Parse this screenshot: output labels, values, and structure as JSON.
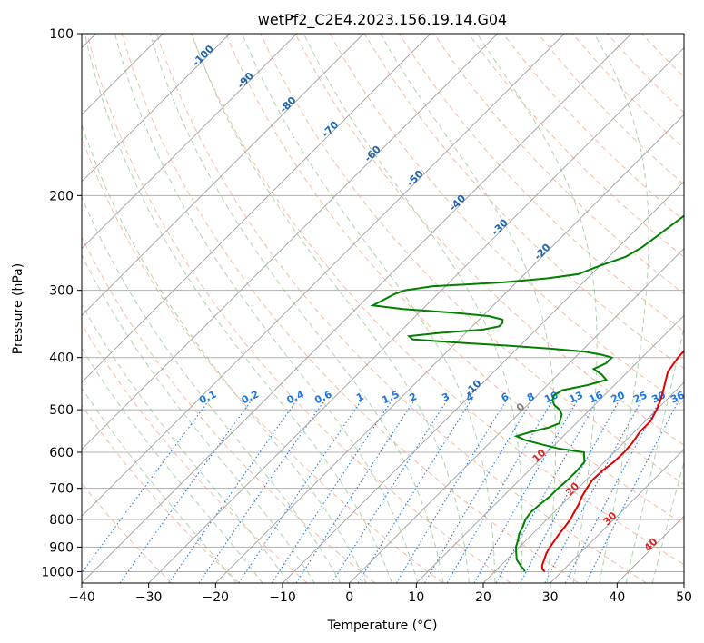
{
  "chart_data": {
    "type": "line",
    "title": "wetPf2_C2E4.2023.156.19.14.G04",
    "xlabel": "Temperature (°C)",
    "ylabel": "Pressure (hPa)",
    "xlim": [
      -40,
      50
    ],
    "ylim": [
      1050,
      100
    ],
    "y_scale": "log",
    "grid": true,
    "x_ticks": [
      "−40",
      "−30",
      "−20",
      "−10",
      "0",
      "10",
      "20",
      "30",
      "40",
      "50"
    ],
    "y_ticks": [
      "100",
      "200",
      "300",
      "400",
      "500",
      "600",
      "700",
      "800",
      "900",
      "1000"
    ],
    "y_tick_values": [
      100,
      200,
      300,
      400,
      500,
      600,
      700,
      800,
      900,
      1000
    ],
    "x_tick_values": [
      -40,
      -30,
      -20,
      -10,
      0,
      10,
      20,
      30,
      40,
      50
    ],
    "colors": {
      "temperature": "#e00000",
      "dewpoint": "#008000",
      "isotherm": "#a0a0a0",
      "dry_adiabat": "#f4a582",
      "moist_adiabat": "#92c592",
      "mixing_ratio": "#1f77e0",
      "ice_label": "#2166ac",
      "warm_label": "#d62728"
    },
    "series": [
      {
        "pressure": [
          1000,
          990,
          975,
          950,
          925,
          900,
          875,
          850,
          825,
          800,
          775,
          750,
          725,
          700,
          675,
          650,
          625,
          600,
          575,
          550,
          525,
          500,
          475,
          450,
          425,
          400,
          375,
          350,
          325,
          300,
          275,
          250,
          225,
          200,
          175,
          150,
          140,
          130,
          120,
          110,
          100
        ],
        "values": [
          27.5,
          26.8,
          26.2,
          25.6,
          25.0,
          24.6,
          24.3,
          24.0,
          23.8,
          23.5,
          23.0,
          22.5,
          21.8,
          21.3,
          20.9,
          21.0,
          21.4,
          21.5,
          21.3,
          20.8,
          20.8,
          20.0,
          18.9,
          17.5,
          16.0,
          15.4,
          15.2,
          14.9,
          14.2,
          13.2,
          11.5,
          9.5,
          7.5,
          5.5,
          3.5,
          1.2,
          0.6,
          1.2,
          2.5,
          3.0,
          3.5
        ]
      },
      {
        "pressure": [
          1000,
          990,
          975,
          950,
          925,
          900,
          875,
          850,
          825,
          800,
          775,
          750,
          725,
          700,
          675,
          650,
          625,
          600,
          590,
          580,
          570,
          560,
          550,
          540,
          530,
          520,
          510,
          500,
          490,
          480,
          470,
          460,
          450,
          440,
          430,
          420,
          410,
          400,
          395,
          390,
          385,
          380,
          375,
          370,
          365,
          360,
          355,
          350,
          345,
          340,
          335,
          330,
          325,
          320,
          315,
          310,
          305,
          300,
          295,
          290,
          285,
          280,
          270,
          260,
          250,
          240,
          230,
          220,
          210,
          200,
          190,
          180,
          170,
          160,
          150,
          140,
          130,
          120,
          110,
          100
        ],
        "values": [
          24.5,
          24.0,
          23.0,
          21.5,
          20.5,
          19.5,
          18.8,
          18.0,
          17.5,
          16.8,
          16.5,
          16.7,
          17.0,
          17.0,
          17.2,
          17.2,
          17.0,
          15.5,
          11.0,
          8.0,
          5.0,
          3.0,
          4.5,
          6.5,
          7.5,
          7.0,
          6.5,
          5.5,
          4.0,
          3.0,
          2.5,
          3.0,
          6.0,
          8.0,
          6.5,
          4.5,
          5.5,
          5.5,
          3.5,
          0.5,
          -5.0,
          -12.0,
          -20.0,
          -27.0,
          -28.0,
          -24.0,
          -18.0,
          -16.0,
          -16.0,
          -16.5,
          -19.0,
          -25.0,
          -33.0,
          -38.0,
          -37.5,
          -37.0,
          -36.5,
          -35.5,
          -32.0,
          -22.0,
          -16.0,
          -12.0,
          -10.0,
          -7.5,
          -6.5,
          -6.0,
          -5.5,
          -5.0,
          -4.5,
          -4.0,
          -2.5,
          -0.5,
          0.5,
          0.5,
          -1.5,
          -2.0,
          -2.5,
          -2.0,
          -1.5,
          0.0
        ]
      }
    ],
    "isotherm_labels": [
      "-100",
      "-90",
      "-80",
      "-70",
      "-60",
      "-50",
      "-40",
      "-30",
      "-20",
      "-10",
      "0",
      "10",
      "20",
      "30",
      "40"
    ],
    "isotherm_label_values": [
      -100,
      -90,
      -80,
      -70,
      -60,
      -50,
      -40,
      -30,
      -20,
      -10,
      0,
      10,
      20,
      30,
      40
    ],
    "mixing_ratio_labels": [
      "0.1",
      "0.2",
      "0.4",
      "0.6",
      "1",
      "1.5",
      "2",
      "3",
      "4",
      "6",
      "8",
      "10",
      "13",
      "16",
      "20",
      "25",
      "30",
      "36"
    ],
    "mixing_ratio_values": [
      0.1,
      0.2,
      0.4,
      0.6,
      1,
      1.5,
      2,
      3,
      4,
      6,
      8,
      10,
      13,
      16,
      20,
      25,
      30,
      36
    ]
  }
}
